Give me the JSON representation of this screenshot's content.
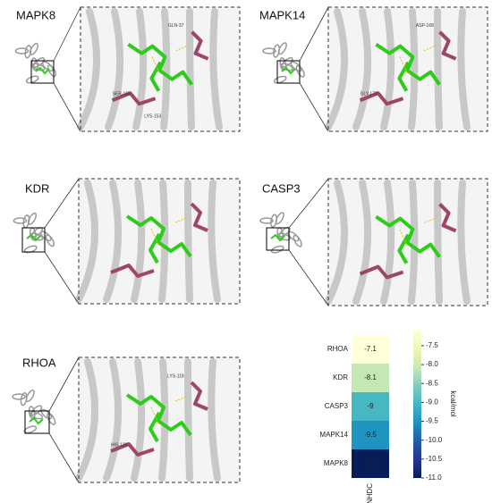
{
  "panels": [
    {
      "title": "MAPK8",
      "residues": [
        "GLN-37",
        "SER-155",
        "LYS-153"
      ]
    },
    {
      "title": "MAPK14",
      "residues": [
        "ASP-168",
        "GLY-170"
      ]
    },
    {
      "title": "KDR",
      "residues": []
    },
    {
      "title": "CASP3",
      "residues": []
    },
    {
      "title": "RHOA",
      "residues": [
        "LYS-118",
        "HIS-126"
      ]
    }
  ],
  "chart_data": {
    "type": "heatmap",
    "categories": [
      "RHOA",
      "KDR",
      "CASP3",
      "MAPK14",
      "MAPK8"
    ],
    "columns": [
      "NHDC"
    ],
    "values": [
      -7.1,
      -8.1,
      -9,
      -9.5,
      -11
    ],
    "colorbar_label": "kcal/mol",
    "clim": [
      -11,
      -7.1
    ],
    "cticks": [
      -7.5,
      {
        "value": -8,
        "label": "-8.0"
      },
      -8.5,
      {
        "value": -9,
        "label": "-9.0"
      },
      -9.5,
      {
        "value": -10,
        "label": "-10.0"
      },
      -10.5,
      {
        "value": -11,
        "label": "-11.0"
      }
    ],
    "colors": [
      "#081d58",
      "#253494",
      "#225ea8",
      "#1d91c0",
      "#41b6c4",
      "#7fcdbb",
      "#c7e9b4",
      "#edf8b1",
      "#ffffd9"
    ]
  }
}
